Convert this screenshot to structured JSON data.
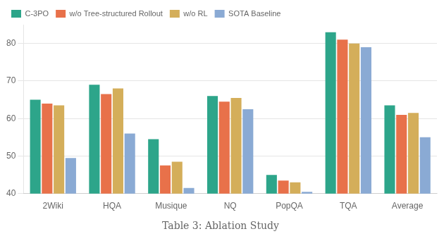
{
  "chart_data": {
    "type": "bar",
    "title": "Table 3: Ablation Study",
    "categories": [
      "2Wiki",
      "HQA",
      "Musique",
      "NQ",
      "PopQA",
      "TQA",
      "Average"
    ],
    "series": [
      {
        "name": "C-3PO",
        "color": "#2DA58A",
        "values": [
          65.0,
          69.0,
          54.5,
          66.0,
          45.0,
          83.0,
          63.5
        ]
      },
      {
        "name": "w/o Tree-structured Rollout",
        "color": "#E8714A",
        "values": [
          64.0,
          66.5,
          47.5,
          64.5,
          43.5,
          81.0,
          61.0
        ]
      },
      {
        "name": "w/o RL",
        "color": "#D4AE5A",
        "values": [
          63.5,
          68.0,
          48.5,
          65.5,
          43.0,
          80.0,
          61.5
        ]
      },
      {
        "name": "SOTA Baseline",
        "color": "#8AAAD4",
        "values": [
          49.5,
          56.0,
          41.5,
          62.5,
          40.5,
          79.0,
          55.0
        ]
      }
    ],
    "ylim": [
      40,
      85
    ],
    "yticks": [
      40,
      50,
      60,
      70,
      80
    ],
    "grid": true,
    "legend": "upper left"
  }
}
